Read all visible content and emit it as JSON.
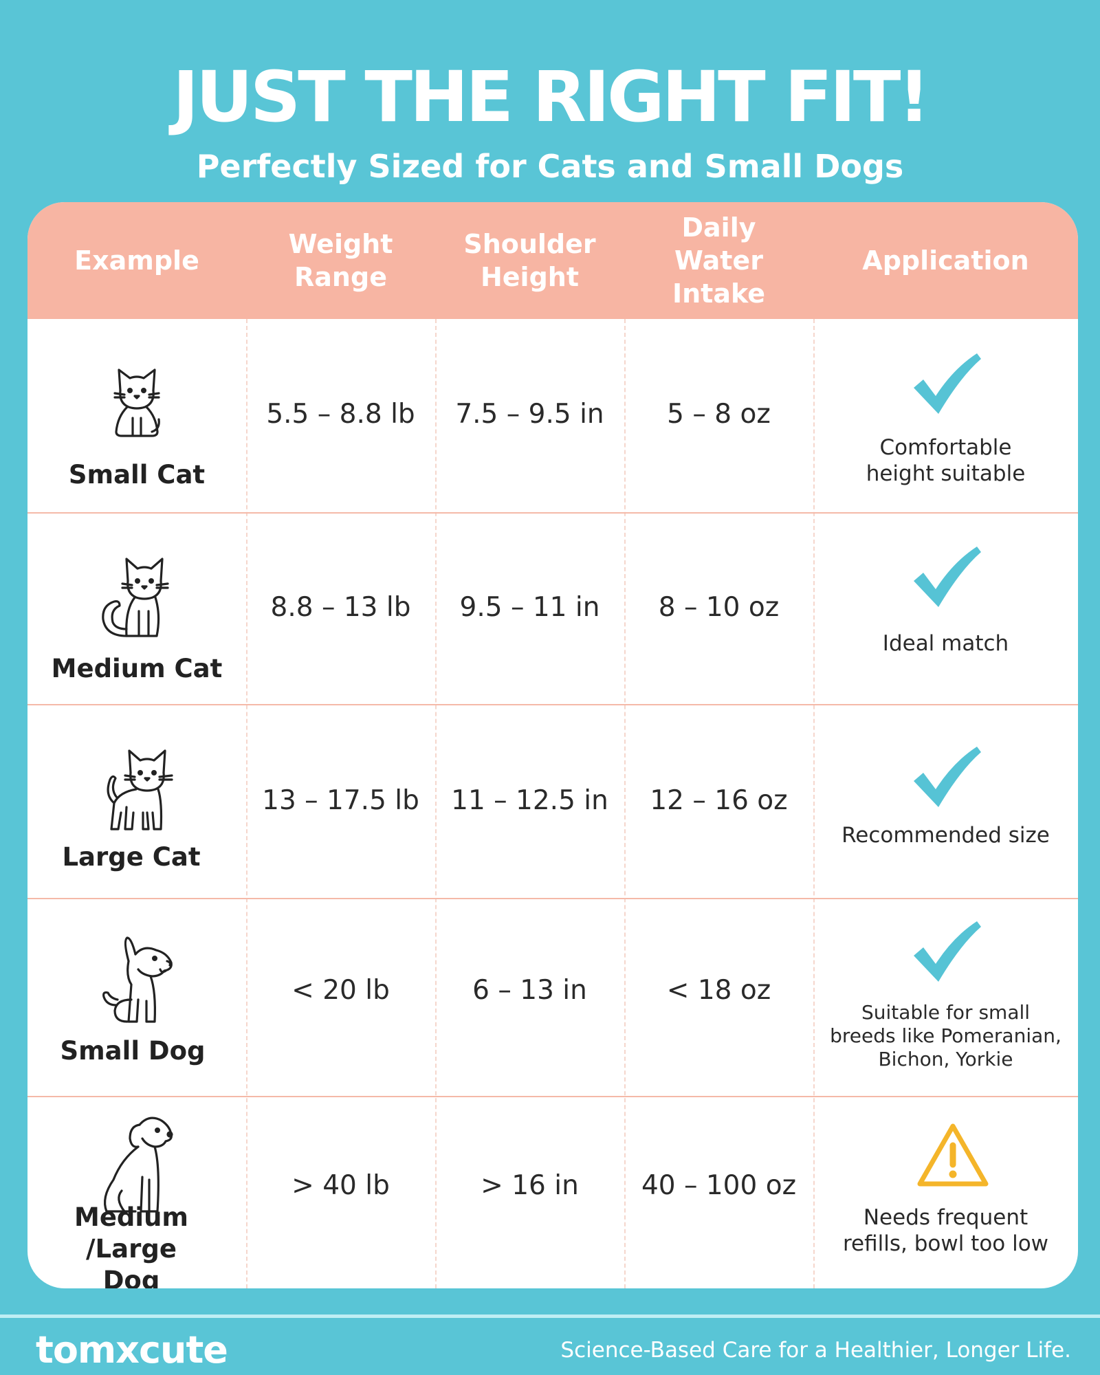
{
  "header": {
    "title": "JUST THE RIGHT FIT!",
    "subtitle": "Perfectly Sized for Cats and Small Dogs"
  },
  "table": {
    "columns": [
      {
        "label": "Example"
      },
      {
        "label": "Weight Range"
      },
      {
        "label": "Shoulder Height"
      },
      {
        "label": "Daily Water Intake"
      },
      {
        "label": "Application"
      }
    ],
    "rows": [
      {
        "example": "Small Cat",
        "icon": "small-cat-icon",
        "weight": "5.5 – 8.8 lb",
        "height": "7.5 – 9.5 in",
        "water": "5 – 8 oz",
        "application_icon": "check-icon",
        "application": "Comfortable height suitable"
      },
      {
        "example": "Medium Cat",
        "icon": "medium-cat-icon",
        "weight": "8.8 – 13 lb",
        "height": "9.5 – 11 in",
        "water": "8 – 10 oz",
        "application_icon": "check-icon",
        "application": "Ideal match"
      },
      {
        "example": "Large Cat",
        "icon": "large-cat-icon",
        "weight": "13 – 17.5 lb",
        "height": "11 – 12.5 in",
        "water": "12 – 16 oz",
        "application_icon": "check-icon",
        "application": "Recommended size"
      },
      {
        "example": "Small Dog",
        "icon": "small-dog-icon",
        "weight": "< 20 lb",
        "height": "6 – 13 in",
        "water": "< 18 oz",
        "application_icon": "check-icon",
        "application": "Suitable for small breeds like Pomeranian, Bichon, Yorkie"
      },
      {
        "example": "Medium /Large Dog",
        "icon": "medium-large-dog-icon",
        "weight": "> 40 lb",
        "height": "> 16 in",
        "water": "40 – 100 oz",
        "application_icon": "warning-icon",
        "application": "Needs frequent refills, bowl too low"
      }
    ]
  },
  "colors": {
    "background": "#59c5d6",
    "header_row": "#f7b5a3",
    "check": "#56c3d5",
    "warning": "#f4b52a"
  },
  "footer": {
    "logo": "tomxcute",
    "tagline": "Science-Based Care for a Healthier, Longer Life."
  }
}
